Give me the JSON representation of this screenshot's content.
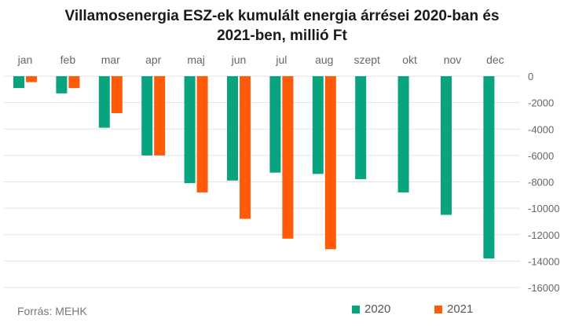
{
  "chart_data": {
    "type": "bar",
    "title_line1": "Villamosenergia ESZ-ek kumulált energia árrései 2020-ban és",
    "title_line2": "2021-ben, millió Ft",
    "categories": [
      "jan",
      "feb",
      "mar",
      "apr",
      "maj",
      "jun",
      "jul",
      "aug",
      "szept",
      "okt",
      "nov",
      "dec"
    ],
    "series": [
      {
        "name": "2020",
        "color": "#0aa37f",
        "values": [
          -900,
          -1300,
          -3900,
          -6000,
          -8100,
          -7900,
          -7300,
          -7400,
          -7800,
          -8800,
          -10500,
          -13800
        ]
      },
      {
        "name": "2021",
        "color": "#ff5a0a",
        "values": [
          -450,
          -900,
          -2800,
          -6000,
          -8800,
          -10800,
          -12300,
          -13100,
          null,
          null,
          null,
          null
        ]
      }
    ],
    "ylim": [
      -16000,
      0
    ],
    "yticks": [
      0,
      -2000,
      -4000,
      -6000,
      -8000,
      -10000,
      -12000,
      -14000,
      -16000
    ],
    "ytick_labels": [
      "0",
      "-2000",
      "-4000",
      "-6000",
      "-8000",
      "-10000",
      "-12000",
      "-14000",
      "-16000"
    ],
    "grid": true,
    "axis_position": "right",
    "legend_position": "bottom",
    "source": "Forrás: MEHK"
  }
}
